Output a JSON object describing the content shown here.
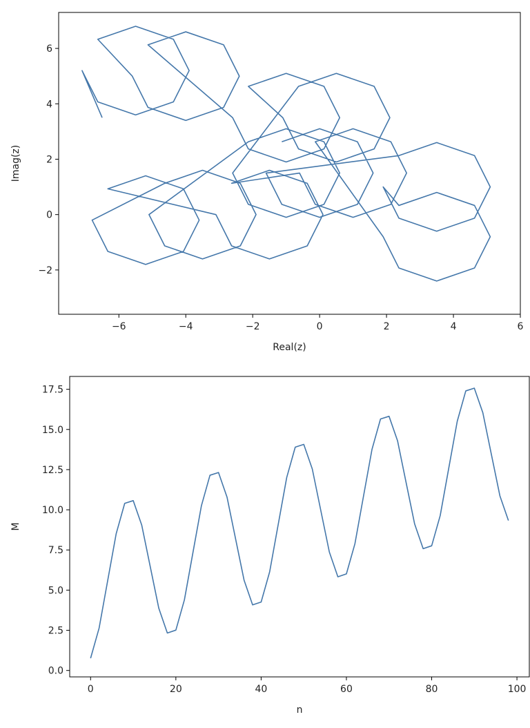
{
  "chart_data": [
    {
      "type": "line",
      "xlabel": "Real(z)",
      "ylabel": "Imag(z)",
      "xlim": [
        -7.8,
        6.0
      ],
      "ylim": [
        -3.6,
        7.3
      ],
      "xticks": [
        {
          "value": -6,
          "label": "−6"
        },
        {
          "value": -4,
          "label": "−4"
        },
        {
          "value": -2,
          "label": "−2"
        },
        0,
        2,
        4,
        6
      ],
      "yticks": [
        {
          "value": -2,
          "label": "−2"
        },
        0,
        2,
        4,
        6
      ],
      "series": [
        {
          "color": "#4477aa",
          "x": [
            -6.5,
            -7.1,
            -6.63,
            -5.5,
            -4.37,
            -3.9,
            -4.37,
            -5.5,
            -6.63,
            -5.6,
            -5.13,
            -4,
            -2.87,
            -2.4,
            -2.87,
            -4,
            -5.13,
            -2.6,
            -2.13,
            -1,
            0.13,
            0.6,
            0.13,
            -1,
            -2.13,
            -1.1,
            -0.63,
            0.5,
            1.63,
            2.1,
            1.63,
            0.5,
            -0.63,
            -2.6,
            -2.13,
            -1,
            0.13,
            0.6,
            0.13,
            -1,
            -2.13,
            -5.1,
            -4.63,
            -3.5,
            -2.37,
            -1.9,
            -2.37,
            -3.5,
            -4.63,
            -6.8,
            -6.33,
            -5.2,
            -4.07,
            -3.6,
            -4.07,
            -5.2,
            -6.33,
            -3.1,
            -2.63,
            -1.5,
            -0.37,
            0.1,
            -0.37,
            -1.5,
            -2.63,
            -0.6,
            -0.13,
            1,
            2.13,
            2.6,
            2.13,
            1,
            -0.13,
            1.9,
            2.37,
            3.5,
            4.63,
            5.1,
            4.63,
            3.5,
            2.37,
            1.9,
            2.37,
            3.5,
            4.63,
            5.1,
            4.63,
            3.5,
            2.37,
            -1.6,
            -1.13,
            0,
            1.13,
            1.6,
            1.13,
            0,
            -1.13
          ],
          "values": [
            3.5,
            5.2,
            4.07,
            3.6,
            4.07,
            5.2,
            6.33,
            6.8,
            6.33,
            5,
            3.87,
            3.4,
            3.87,
            5,
            6.13,
            6.6,
            6.13,
            3.5,
            2.37,
            1.9,
            2.37,
            3.5,
            4.63,
            5.1,
            4.63,
            3.5,
            2.37,
            1.9,
            2.37,
            3.5,
            4.63,
            5.1,
            4.63,
            1.5,
            0.37,
            -0.1,
            0.37,
            1.5,
            2.63,
            3.1,
            2.63,
            0,
            -1.13,
            -1.6,
            -1.13,
            0,
            1.13,
            1.6,
            1.13,
            -0.2,
            -1.33,
            -1.8,
            -1.33,
            -0.2,
            0.93,
            1.4,
            0.93,
            0,
            -1.13,
            -1.6,
            -1.13,
            0,
            1.13,
            1.6,
            1.13,
            1.5,
            0.37,
            -0.1,
            0.37,
            1.5,
            2.63,
            3.1,
            2.63,
            -0.8,
            -1.93,
            -2.4,
            -1.93,
            -0.8,
            0.33,
            0.8,
            0.33,
            1,
            -0.13,
            -0.6,
            -0.13,
            1,
            2.13,
            2.6,
            2.13,
            1.5,
            0.37,
            -0.1,
            0.37,
            1.5,
            2.63,
            3.1,
            2.63
          ]
        }
      ]
    },
    {
      "type": "line",
      "xlabel": "n",
      "ylabel": "M",
      "xlim": [
        -4.9,
        102.9
      ],
      "ylim": [
        -0.4,
        18.3
      ],
      "xticks": [
        0,
        20,
        40,
        60,
        80,
        100
      ],
      "yticks": [
        {
          "value": 0,
          "label": "0.0"
        },
        2.5,
        {
          "value": 5,
          "label": "5.0"
        },
        7.5,
        {
          "value": 10,
          "label": "10.0"
        },
        12.5,
        {
          "value": 15,
          "label": "15.0"
        },
        17.5
      ],
      "series": [
        {
          "color": "#4477aa",
          "x": [
            0,
            2,
            4,
            6,
            8,
            10,
            12,
            14,
            16,
            18,
            20,
            22,
            24,
            26,
            28,
            30,
            32,
            34,
            36,
            38,
            40,
            42,
            44,
            46,
            48,
            50,
            52,
            54,
            56,
            58,
            60,
            62,
            64,
            66,
            68,
            70,
            72,
            74,
            76,
            78,
            80,
            82,
            84,
            86,
            88,
            90,
            92,
            94,
            96,
            98
          ],
          "values": [
            0.76,
            2.64,
            5.58,
            8.51,
            10.4,
            10.57,
            9.04,
            6.45,
            3.87,
            2.33,
            2.51,
            4.39,
            7.33,
            10.26,
            12.15,
            12.32,
            10.79,
            8.2,
            5.62,
            4.08,
            4.26,
            6.14,
            9.08,
            12.01,
            13.9,
            14.07,
            12.54,
            9.95,
            7.37,
            5.83,
            6.01,
            7.89,
            10.83,
            13.76,
            15.65,
            15.82,
            14.29,
            11.7,
            9.12,
            7.58,
            7.76,
            9.64,
            12.58,
            15.51,
            17.4,
            17.57,
            16.04,
            13.45,
            10.87,
            9.33
          ]
        }
      ]
    }
  ]
}
